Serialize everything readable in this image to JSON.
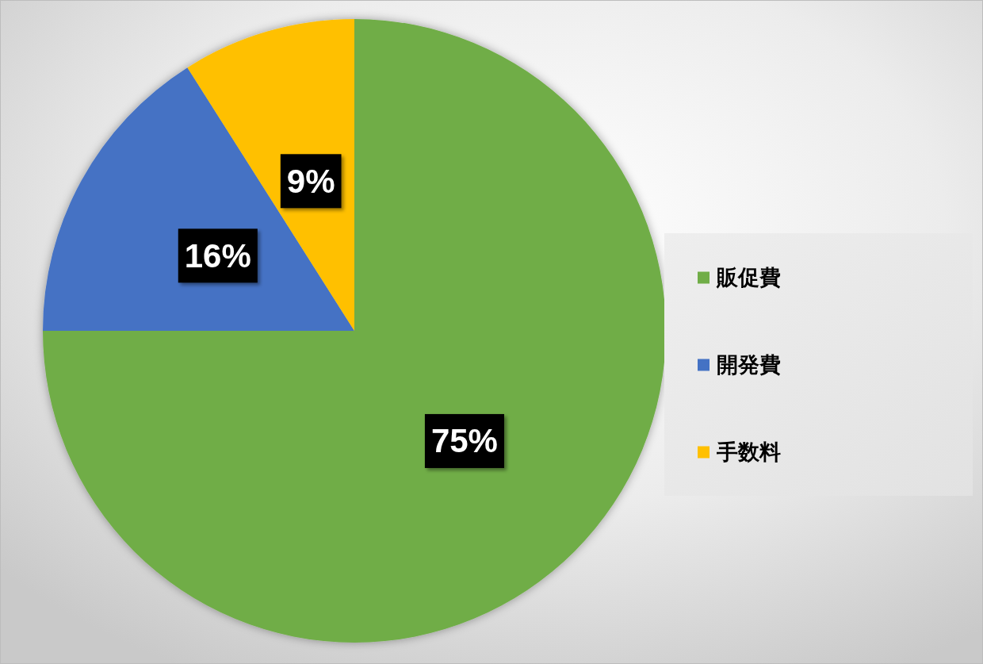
{
  "chart_data": {
    "type": "pie",
    "categories": [
      "販促費",
      "開発費",
      "手数料"
    ],
    "values": [
      75,
      16,
      9
    ],
    "colors": [
      "#70ad47",
      "#4472c4",
      "#ffc000"
    ],
    "value_labels": [
      "75%",
      "16%",
      "9%"
    ],
    "legend": "right"
  }
}
